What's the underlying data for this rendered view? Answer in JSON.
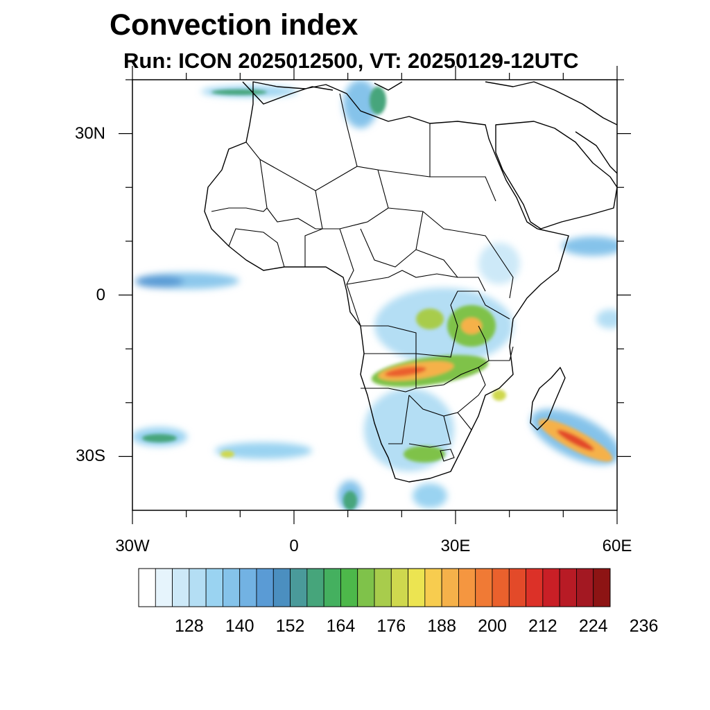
{
  "title": "Convection index",
  "subtitle": "Run: ICON 2025012500,  VT: 20250129-12UTC",
  "map": {
    "extent": {
      "lon_min": -30,
      "lon_max": 60,
      "lat_min": -40,
      "lat_max": 40
    },
    "lat_ticks": [
      {
        "lat": 30,
        "label": "30N"
      },
      {
        "lat": 0,
        "label": "0"
      },
      {
        "lat": -30,
        "label": "30S"
      }
    ],
    "lon_ticks": [
      {
        "lon": -30,
        "label": "30W"
      },
      {
        "lon": 0,
        "label": "0"
      },
      {
        "lon": 30,
        "label": "30E"
      },
      {
        "lon": 60,
        "label": "60E"
      }
    ]
  },
  "colorbar": {
    "colors": [
      "#ffffff",
      "#e6f4fc",
      "#cde9f8",
      "#b4def4",
      "#9ad3f1",
      "#85c3ea",
      "#72b2e3",
      "#5a9bd5",
      "#4b8fc0",
      "#4a9a9a",
      "#46a57b",
      "#44b05f",
      "#4db84a",
      "#7fc24a",
      "#a8cc4c",
      "#cfd84e",
      "#ece451",
      "#f7cc4f",
      "#f5b14a",
      "#f59640",
      "#f07a35",
      "#ea612d",
      "#e34a29",
      "#dc3128",
      "#c91f26",
      "#b81b25",
      "#a31822",
      "#8d1414"
    ],
    "labels": [
      "128",
      "140",
      "152",
      "164",
      "176",
      "188",
      "200",
      "212",
      "224",
      "236"
    ]
  }
}
